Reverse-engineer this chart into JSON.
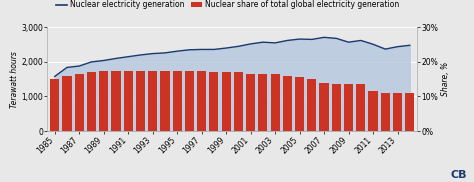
{
  "years": [
    1985,
    1986,
    1987,
    1988,
    1989,
    1990,
    1991,
    1992,
    1993,
    1994,
    1995,
    1996,
    1997,
    1998,
    1999,
    2000,
    2001,
    2002,
    2003,
    2004,
    2005,
    2006,
    2007,
    2008,
    2009,
    2010,
    2011,
    2012,
    2013,
    2014
  ],
  "nuclear_gen": [
    1580,
    1840,
    1880,
    2000,
    2040,
    2100,
    2150,
    2200,
    2240,
    2260,
    2310,
    2350,
    2360,
    2360,
    2400,
    2450,
    2520,
    2570,
    2550,
    2620,
    2660,
    2650,
    2710,
    2680,
    2570,
    2620,
    2510,
    2370,
    2440,
    2480
  ],
  "nuclear_share": [
    15.0,
    16.0,
    16.5,
    17.0,
    17.5,
    17.5,
    17.5,
    17.5,
    17.5,
    17.5,
    17.5,
    17.5,
    17.5,
    17.0,
    17.0,
    17.0,
    16.5,
    16.5,
    16.5,
    16.0,
    15.5,
    15.0,
    14.0,
    13.5,
    13.5,
    13.5,
    11.5,
    11.0,
    11.0,
    11.0
  ],
  "bar_color": "#cc3322",
  "line_color": "#1a3a6e",
  "fill_color": "#b8c9e0",
  "fill_alpha": 0.85,
  "ylim_left": [
    0,
    3000
  ],
  "ylim_right": [
    0,
    30
  ],
  "yticks_left": [
    0,
    1000,
    2000,
    3000
  ],
  "yticks_right": [
    0,
    10,
    20,
    30
  ],
  "ytick_labels_left": [
    "0",
    "1,000",
    "2,000",
    "3,000"
  ],
  "ytick_labels_right": [
    "0%",
    "10%",
    "20%",
    "30%"
  ],
  "ylabel_left": "Terawatt hours",
  "ylabel_right": "Share, %",
  "legend1_label": "Nuclear electricity generation",
  "legend2_label": "Nuclear share of total global electricity generation",
  "bg_color": "#e8e8e8",
  "gridcolor": "#ffffff",
  "bar_width": 0.75,
  "xtick_labels": [
    "1985",
    "1987",
    "1989",
    "1991",
    "1993",
    "1995",
    "1997",
    "1999",
    "2001",
    "2003",
    "2005",
    "2007",
    "2009",
    "2011",
    "2013"
  ],
  "xtick_years": [
    1985,
    1987,
    1989,
    1991,
    1993,
    1995,
    1997,
    1999,
    2001,
    2003,
    2005,
    2007,
    2009,
    2011,
    2013
  ],
  "watermark_text": "CB",
  "watermark_color": "#1a3a6e",
  "font_size_tick": 5.5,
  "font_size_legend": 5.5,
  "font_size_ylabel": 5.5
}
